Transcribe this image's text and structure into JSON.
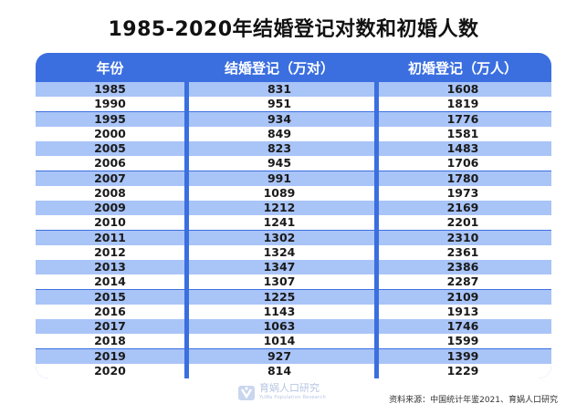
{
  "title": "1985-2020年结婚登记对数和初婚人数",
  "columns": [
    "年份",
    "结婚登记（万对）",
    "初婚登记（万人）"
  ],
  "rows": [
    [
      "1985",
      "831",
      "1608"
    ],
    [
      "1990",
      "951",
      "1819"
    ],
    [
      "1995",
      "934",
      "1776"
    ],
    [
      "2000",
      "849",
      "1581"
    ],
    [
      "2005",
      "823",
      "1483"
    ],
    [
      "2006",
      "945",
      "1706"
    ],
    [
      "2007",
      "991",
      "1780"
    ],
    [
      "2008",
      "1089",
      "1973"
    ],
    [
      "2009",
      "1212",
      "2169"
    ],
    [
      "2010",
      "1241",
      "2201"
    ],
    [
      "2011",
      "1302",
      "2310"
    ],
    [
      "2012",
      "1324",
      "2361"
    ],
    [
      "2013",
      "1347",
      "2386"
    ],
    [
      "2014",
      "1307",
      "2287"
    ],
    [
      "2015",
      "1225",
      "2109"
    ],
    [
      "2016",
      "1143",
      "1913"
    ],
    [
      "2017",
      "1063",
      "1746"
    ],
    [
      "2018",
      "1014",
      "1599"
    ],
    [
      "2019",
      "927",
      "1399"
    ],
    [
      "2020",
      "814",
      "1229"
    ]
  ],
  "logo": {
    "name": "育娲人口研究",
    "subtitle": "YuWa Population Research"
  },
  "source": "资料来源：中国统计年鉴2021、育娲人口研究",
  "colors": {
    "header_blue": "#3b6fe0",
    "stripe_blue": "#a9c4f7",
    "white": "#ffffff"
  }
}
